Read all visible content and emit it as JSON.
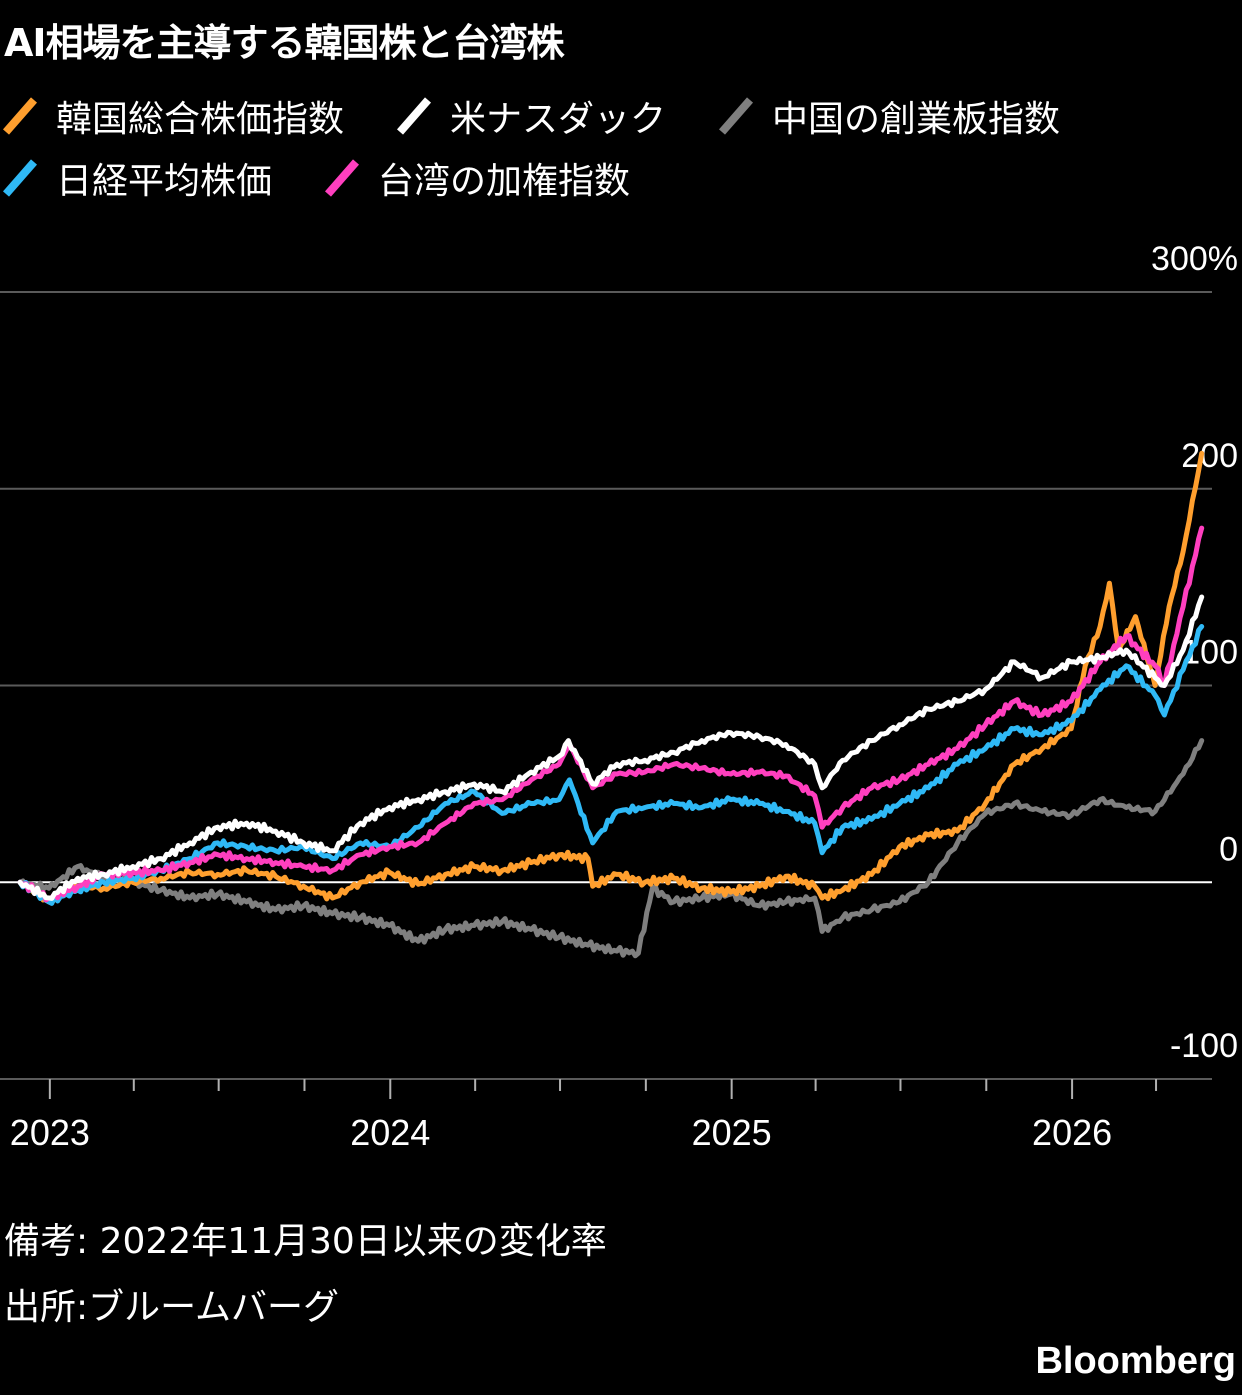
{
  "title": "AI相場を主導する韓国株と台湾株",
  "note": "備考: 2022年11月30日以来の変化率",
  "source": "出所:ブルームバーグ",
  "brand": "Bloomberg",
  "chart_data": {
    "type": "line",
    "title": "AI相場を主導する韓国株と台湾株",
    "xlabel": "",
    "ylabel": "",
    "y_unit": "%",
    "ylim": [
      -100,
      300
    ],
    "yticks": [
      -100,
      0,
      100,
      200,
      300
    ],
    "ytick_labels": [
      "-100",
      "0",
      "100",
      "200",
      "300%"
    ],
    "xlim": [
      "2022-11-30",
      "2026-05-31"
    ],
    "xticks": [
      "2023-01-01",
      "2024-01-01",
      "2025-01-01",
      "2026-01-01"
    ],
    "xtick_labels": [
      "2023",
      "2024",
      "2025",
      "2026"
    ],
    "grid": "horizontal",
    "legend_position": "top-left",
    "series": [
      {
        "name": "中国の創業板指数",
        "color": "#7f7f7f",
        "x": [
          "2022-11-30",
          "2022-12-31",
          "2023-01-31",
          "2023-02-28",
          "2023-03-31",
          "2023-04-30",
          "2023-05-31",
          "2023-06-30",
          "2023-07-31",
          "2023-08-31",
          "2023-09-30",
          "2023-10-31",
          "2023-11-30",
          "2023-12-31",
          "2024-01-31",
          "2024-02-29",
          "2024-03-31",
          "2024-04-30",
          "2024-05-31",
          "2024-06-30",
          "2024-07-31",
          "2024-08-31",
          "2024-09-23",
          "2024-10-08",
          "2024-10-31",
          "2024-11-30",
          "2024-12-31",
          "2025-01-31",
          "2025-02-28",
          "2025-03-31",
          "2025-04-08",
          "2025-04-30",
          "2025-05-31",
          "2025-06-30",
          "2025-07-31",
          "2025-08-31",
          "2025-09-30",
          "2025-10-31",
          "2025-11-30",
          "2025-12-31",
          "2026-01-31",
          "2026-02-28",
          "2026-03-31",
          "2026-04-30",
          "2026-05-20"
        ],
        "values": [
          0,
          -3,
          8,
          2,
          0,
          -4,
          -8,
          -6,
          -10,
          -14,
          -12,
          -16,
          -18,
          -22,
          -30,
          -24,
          -22,
          -20,
          -24,
          -28,
          -32,
          -35,
          -36,
          -3,
          -10,
          -8,
          -6,
          -12,
          -10,
          -8,
          -25,
          -18,
          -14,
          -10,
          0,
          20,
          35,
          40,
          36,
          34,
          42,
          38,
          36,
          55,
          72
        ]
      },
      {
        "name": "韓国総合株価指数",
        "color": "#ff9f2e",
        "x": [
          "2022-11-30",
          "2022-12-31",
          "2023-01-31",
          "2023-02-28",
          "2023-03-31",
          "2023-04-30",
          "2023-05-31",
          "2023-06-30",
          "2023-07-31",
          "2023-08-31",
          "2023-09-30",
          "2023-10-31",
          "2023-11-30",
          "2023-12-31",
          "2024-01-31",
          "2024-02-29",
          "2024-03-31",
          "2024-04-30",
          "2024-05-31",
          "2024-06-30",
          "2024-07-31",
          "2024-08-05",
          "2024-08-31",
          "2024-09-30",
          "2024-10-31",
          "2024-11-30",
          "2024-12-31",
          "2025-01-31",
          "2025-02-28",
          "2025-03-31",
          "2025-04-08",
          "2025-04-30",
          "2025-05-31",
          "2025-06-30",
          "2025-07-31",
          "2025-08-31",
          "2025-09-30",
          "2025-10-31",
          "2025-11-30",
          "2025-12-31",
          "2026-01-15",
          "2026-01-31",
          "2026-02-10",
          "2026-02-20",
          "2026-03-10",
          "2026-03-31",
          "2026-04-15",
          "2026-04-30",
          "2026-05-20"
        ],
        "values": [
          0,
          -10,
          -2,
          -3,
          0,
          2,
          5,
          4,
          6,
          3,
          -2,
          -8,
          0,
          5,
          -1,
          4,
          8,
          6,
          10,
          14,
          12,
          -2,
          4,
          0,
          2,
          -3,
          -5,
          -2,
          3,
          -2,
          -8,
          -4,
          4,
          18,
          24,
          26,
          40,
          60,
          68,
          78,
          110,
          130,
          152,
          118,
          135,
          100,
          140,
          168,
          218
        ]
      },
      {
        "name": "日経平均株価",
        "color": "#2fb9f6",
        "x": [
          "2022-11-30",
          "2022-12-31",
          "2023-01-31",
          "2023-02-28",
          "2023-03-31",
          "2023-04-30",
          "2023-05-31",
          "2023-06-30",
          "2023-07-31",
          "2023-08-31",
          "2023-09-30",
          "2023-10-31",
          "2023-11-30",
          "2023-12-31",
          "2024-01-31",
          "2024-02-29",
          "2024-03-31",
          "2024-04-30",
          "2024-05-31",
          "2024-06-30",
          "2024-07-11",
          "2024-08-05",
          "2024-08-31",
          "2024-09-30",
          "2024-10-31",
          "2024-11-30",
          "2024-12-31",
          "2025-01-31",
          "2025-02-28",
          "2025-03-31",
          "2025-04-08",
          "2025-04-30",
          "2025-05-31",
          "2025-06-30",
          "2025-07-31",
          "2025-08-31",
          "2025-09-30",
          "2025-10-31",
          "2025-11-30",
          "2025-12-31",
          "2026-01-31",
          "2026-02-28",
          "2026-03-31",
          "2026-04-10",
          "2026-04-30",
          "2026-05-20"
        ],
        "values": [
          0,
          -10,
          -4,
          0,
          2,
          6,
          12,
          20,
          18,
          16,
          18,
          12,
          20,
          18,
          28,
          40,
          46,
          35,
          40,
          42,
          52,
          20,
          36,
          38,
          40,
          38,
          42,
          40,
          36,
          30,
          15,
          28,
          32,
          40,
          48,
          60,
          68,
          78,
          75,
          82,
          98,
          110,
          95,
          85,
          108,
          130
        ]
      },
      {
        "name": "台湾の加権指数",
        "color": "#ff3fbf",
        "x": [
          "2022-11-30",
          "2022-12-31",
          "2023-01-31",
          "2023-02-28",
          "2023-03-31",
          "2023-04-30",
          "2023-05-31",
          "2023-06-30",
          "2023-07-31",
          "2023-08-31",
          "2023-09-30",
          "2023-10-31",
          "2023-11-30",
          "2023-12-31",
          "2024-01-31",
          "2024-02-29",
          "2024-03-31",
          "2024-04-30",
          "2024-05-31",
          "2024-06-30",
          "2024-07-11",
          "2024-08-05",
          "2024-08-31",
          "2024-09-30",
          "2024-10-31",
          "2024-11-30",
          "2024-12-31",
          "2025-01-31",
          "2025-02-28",
          "2025-03-31",
          "2025-04-08",
          "2025-04-30",
          "2025-05-31",
          "2025-06-30",
          "2025-07-31",
          "2025-08-31",
          "2025-09-30",
          "2025-10-31",
          "2025-11-30",
          "2025-12-31",
          "2026-01-31",
          "2026-02-28",
          "2026-03-31",
          "2026-04-10",
          "2026-04-30",
          "2026-05-20"
        ],
        "values": [
          0,
          -8,
          -2,
          4,
          5,
          6,
          10,
          14,
          12,
          10,
          8,
          6,
          14,
          18,
          20,
          30,
          40,
          42,
          52,
          60,
          70,
          48,
          55,
          56,
          60,
          58,
          55,
          56,
          54,
          44,
          28,
          38,
          48,
          52,
          60,
          68,
          80,
          92,
          85,
          92,
          112,
          125,
          110,
          100,
          140,
          180
        ]
      },
      {
        "name": "米ナスダック",
        "color": "#ffffff",
        "x": [
          "2022-11-30",
          "2022-12-31",
          "2023-01-31",
          "2023-02-28",
          "2023-03-31",
          "2023-04-30",
          "2023-05-31",
          "2023-06-30",
          "2023-07-31",
          "2023-08-31",
          "2023-09-30",
          "2023-10-31",
          "2023-11-30",
          "2023-12-31",
          "2024-01-31",
          "2024-02-29",
          "2024-03-31",
          "2024-04-30",
          "2024-05-31",
          "2024-06-30",
          "2024-07-10",
          "2024-08-05",
          "2024-08-31",
          "2024-09-30",
          "2024-10-31",
          "2024-11-30",
          "2024-12-31",
          "2025-01-31",
          "2025-02-28",
          "2025-03-31",
          "2025-04-08",
          "2025-04-30",
          "2025-05-31",
          "2025-06-30",
          "2025-07-31",
          "2025-08-31",
          "2025-09-30",
          "2025-10-31",
          "2025-11-30",
          "2025-12-31",
          "2026-01-31",
          "2026-02-28",
          "2026-03-31",
          "2026-04-10",
          "2026-04-30",
          "2026-05-20"
        ],
        "values": [
          0,
          -8,
          2,
          4,
          8,
          12,
          20,
          28,
          30,
          26,
          20,
          16,
          30,
          38,
          42,
          46,
          50,
          46,
          56,
          64,
          72,
          50,
          60,
          62,
          66,
          72,
          76,
          74,
          70,
          60,
          48,
          62,
          72,
          80,
          88,
          92,
          98,
          112,
          104,
          112,
          114,
          118,
          104,
          100,
          118,
          145
        ]
      }
    ]
  },
  "legend": {
    "row1": [
      {
        "label": "韓国総合株価指数",
        "color": "#ff9f2e"
      },
      {
        "label": "米ナスダック",
        "color": "#ffffff"
      },
      {
        "label": "中国の創業板指数",
        "color": "#7f7f7f"
      }
    ],
    "row2": [
      {
        "label": "日経平均株価",
        "color": "#2fb9f6"
      },
      {
        "label": "台湾の加権指数",
        "color": "#ff3fbf"
      }
    ]
  }
}
